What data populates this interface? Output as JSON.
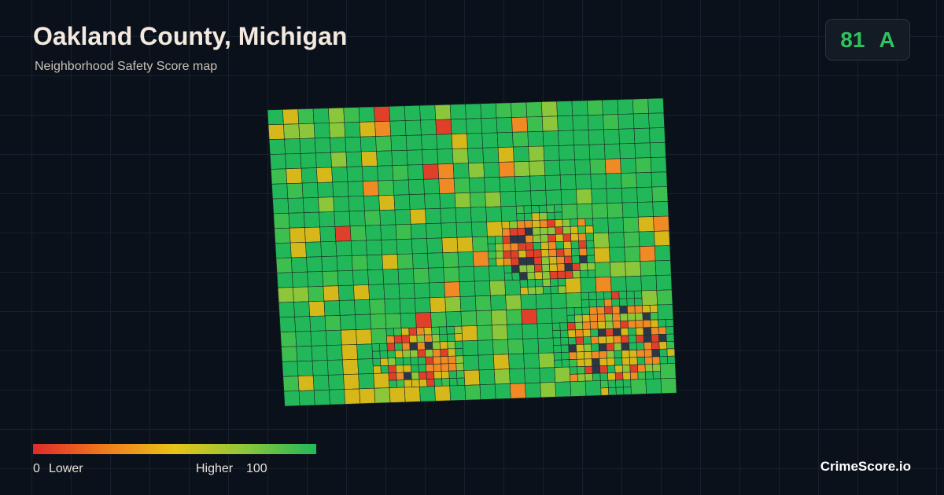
{
  "header": {
    "title": "Oakland County, Michigan",
    "subtitle": "Neighborhood Safety Score map"
  },
  "score": {
    "value": 81,
    "grade": "A"
  },
  "legend": {
    "min": 0,
    "low_label": "Lower",
    "high_label": "Higher",
    "max": 100
  },
  "brand": "CrimeScore.io"
}
